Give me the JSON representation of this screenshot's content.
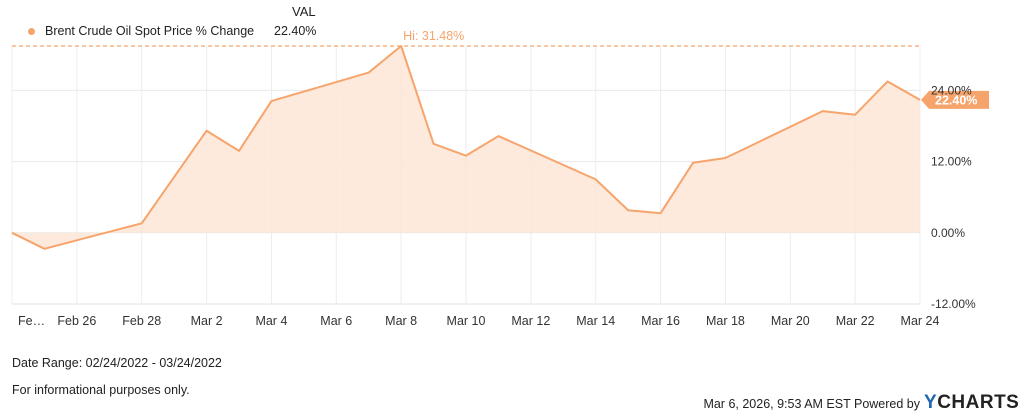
{
  "legend": {
    "header": "VAL",
    "series_label": "Brent Crude Oil Spot Price % Change",
    "series_value": "22.40%",
    "series_color": "#f6a46b"
  },
  "chart_data": {
    "type": "area",
    "x": [
      "2022-02-24",
      "2022-02-25",
      "2022-02-28",
      "2022-03-02",
      "2022-03-03",
      "2022-03-04",
      "2022-03-07",
      "2022-03-08",
      "2022-03-09",
      "2022-03-10",
      "2022-03-11",
      "2022-03-14",
      "2022-03-15",
      "2022-03-16",
      "2022-03-17",
      "2022-03-18",
      "2022-03-21",
      "2022-03-22",
      "2022-03-23",
      "2022-03-24"
    ],
    "series": [
      {
        "name": "Brent Crude Oil Spot Price % Change",
        "values": [
          0.0,
          -2.7,
          1.6,
          17.2,
          13.8,
          22.2,
          27.0,
          31.48,
          15.0,
          13.0,
          16.3,
          9.0,
          3.8,
          3.3,
          11.8,
          12.6,
          20.5,
          19.9,
          25.5,
          22.4
        ]
      }
    ],
    "ylim": [
      -12,
      31.48
    ],
    "y_ticks": [
      -12,
      0,
      12,
      24
    ],
    "y_tick_labels": [
      "-12.00%",
      "0.00%",
      "12.00%",
      "24.00%"
    ],
    "x_tick_labels": [
      "Fe…",
      "Feb 26",
      "Feb 28",
      "Mar 2",
      "Mar 4",
      "Mar 6",
      "Mar 8",
      "Mar 10",
      "Mar 12",
      "Mar 14",
      "Mar 16",
      "Mar 18",
      "Mar 20",
      "Mar 22",
      "Mar 24"
    ],
    "high_label": "Hi: 31.48%",
    "last_value_label": "22.40%",
    "grid": true,
    "color": "#f6a46b",
    "fill_color": "#fde6d6"
  },
  "footer": {
    "date_range": "Date Range: 02/24/2022 - 03/24/2022",
    "note": "For informational purposes only.",
    "timestamp": "Mar 6, 2026, 9:53 AM EST Powered by",
    "brand_y": "Y",
    "brand_rest": "CHARTS"
  }
}
